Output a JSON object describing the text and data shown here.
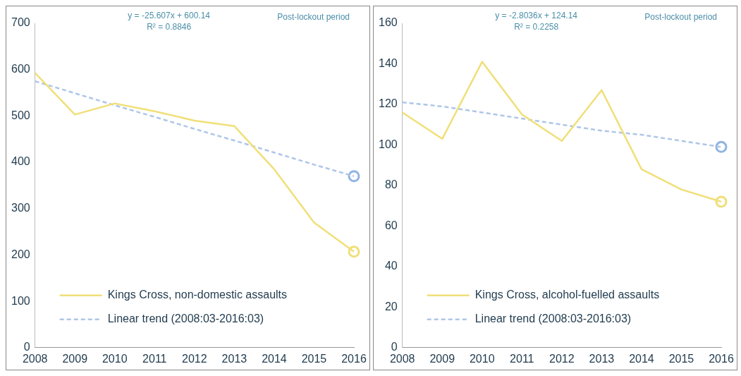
{
  "chart_data": [
    {
      "type": "line",
      "categories": [
        "2008",
        "2009",
        "2010",
        "2011",
        "2012",
        "2013",
        "2014",
        "2015",
        "2016"
      ],
      "ylim": [
        0,
        700
      ],
      "yticks": [
        0,
        100,
        200,
        300,
        400,
        500,
        600,
        700
      ],
      "grid": false,
      "legend": "bottom left",
      "annotations": [
        "y = -25.607x + 600.14",
        "R² = 0.8846",
        "Post-lockout period"
      ],
      "series": [
        {
          "name": "Kings Cross, non-domestic assaults",
          "color": "#f0df78",
          "values": [
            593,
            503,
            527,
            510,
            490,
            478,
            385,
            270,
            207
          ]
        },
        {
          "name": "Linear trend (2008:03-2016:03)",
          "color": "#aec6e8",
          "line_style": "dashed",
          "values": [
            575,
            549,
            523,
            498,
            472,
            447,
            421,
            395,
            370
          ]
        },
        {
          "type": "scatter",
          "marker": "circle",
          "color": "#f0df78",
          "values": [
            null,
            null,
            null,
            null,
            null,
            null,
            null,
            null,
            207
          ]
        },
        {
          "type": "scatter",
          "marker": "circle",
          "color": "#8fb4e3",
          "values": [
            null,
            null,
            null,
            null,
            null,
            null,
            null,
            null,
            370
          ]
        }
      ]
    },
    {
      "type": "line",
      "categories": [
        "2008",
        "2009",
        "2010",
        "2011",
        "2012",
        "2013",
        "2014",
        "2015",
        "2016"
      ],
      "ylim": [
        0,
        160
      ],
      "yticks": [
        0,
        20,
        40,
        60,
        80,
        100,
        120,
        140,
        160
      ],
      "grid": false,
      "legend": "bottom left",
      "annotations": [
        "y = -2.8036x + 124.14",
        "R² = 0.2258",
        "Post-lockout period"
      ],
      "series": [
        {
          "name": "Kings Cross, alcohol-fuelled assaults",
          "color": "#f0df78",
          "values": [
            116,
            103,
            141,
            115,
            102,
            127,
            88,
            78,
            72
          ]
        },
        {
          "name": "Linear trend (2008:03-2016:03)",
          "color": "#aec6e8",
          "line_style": "dashed",
          "values": [
            121,
            119,
            116,
            113,
            110,
            107,
            105,
            102,
            99
          ]
        },
        {
          "type": "scatter",
          "marker": "circle",
          "color": "#f0df78",
          "values": [
            null,
            null,
            null,
            null,
            null,
            null,
            null,
            null,
            72
          ]
        },
        {
          "type": "scatter",
          "marker": "circle",
          "color": "#8fb4e3",
          "values": [
            null,
            null,
            null,
            null,
            null,
            null,
            null,
            null,
            99
          ]
        }
      ]
    }
  ]
}
